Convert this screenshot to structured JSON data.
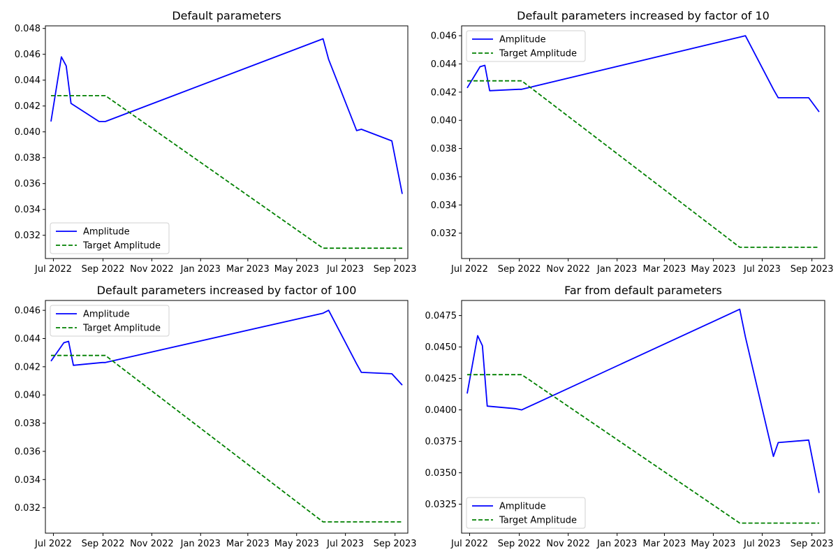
{
  "colors": {
    "amplitude": "#0000ff",
    "target": "#008000",
    "axes": "#000000",
    "background": "#ffffff"
  },
  "chart_data": [
    {
      "type": "line",
      "title": "Default parameters",
      "xlabel": "",
      "ylabel": "",
      "x_ticks": [
        "Jul 2022",
        "Sep 2022",
        "Nov 2022",
        "Jan 2023",
        "Mar 2023",
        "May 2023",
        "Jul 2023",
        "Sep 2023"
      ],
      "y_ticks": [
        "0.032",
        "0.034",
        "0.036",
        "0.038",
        "0.040",
        "0.042",
        "0.044",
        "0.046",
        "0.048"
      ],
      "ylim": [
        0.0302,
        0.0482
      ],
      "xlim": [
        "2022-06-21",
        "2023-09-17"
      ],
      "grid": false,
      "legend_position": "lower left",
      "series": [
        {
          "name": "Amplitude",
          "style": "solid",
          "points": [
            [
              "2022-06-28",
              0.0408
            ],
            [
              "2022-07-11",
              0.0458
            ],
            [
              "2022-07-17",
              0.0451
            ],
            [
              "2022-07-23",
              0.0422
            ],
            [
              "2022-08-27",
              0.0408
            ],
            [
              "2022-09-04",
              0.0408
            ],
            [
              "2023-06-03",
              0.0472
            ],
            [
              "2023-06-10",
              0.0456
            ],
            [
              "2023-07-15",
              0.0401
            ],
            [
              "2023-07-21",
              0.0402
            ],
            [
              "2023-08-28",
              0.0393
            ],
            [
              "2023-09-10",
              0.0352
            ]
          ]
        },
        {
          "name": "Target Amplitude",
          "style": "dashed",
          "points": [
            [
              "2022-06-28",
              0.0428
            ],
            [
              "2022-09-04",
              0.0428
            ],
            [
              "2023-06-03",
              0.031
            ],
            [
              "2023-09-10",
              0.031
            ]
          ]
        }
      ]
    },
    {
      "type": "line",
      "title": "Default parameters increased by factor of 10",
      "xlabel": "",
      "ylabel": "",
      "x_ticks": [
        "Jul 2022",
        "Sep 2022",
        "Nov 2022",
        "Jan 2023",
        "Mar 2023",
        "May 2023",
        "Jul 2023",
        "Sep 2023"
      ],
      "y_ticks": [
        "0.032",
        "0.034",
        "0.036",
        "0.038",
        "0.040",
        "0.042",
        "0.044",
        "0.046"
      ],
      "ylim": [
        0.0302,
        0.0467
      ],
      "xlim": [
        "2022-06-21",
        "2023-09-17"
      ],
      "grid": false,
      "legend_position": "upper left",
      "series": [
        {
          "name": "Amplitude",
          "style": "solid",
          "points": [
            [
              "2022-06-28",
              0.0423
            ],
            [
              "2022-07-14",
              0.0438
            ],
            [
              "2022-07-20",
              0.0439
            ],
            [
              "2022-07-26",
              0.0421
            ],
            [
              "2022-08-31",
              0.0422
            ],
            [
              "2022-09-04",
              0.0422
            ],
            [
              "2023-06-03",
              0.0459
            ],
            [
              "2023-06-10",
              0.046
            ],
            [
              "2023-07-15",
              0.0422
            ],
            [
              "2023-07-21",
              0.0416
            ],
            [
              "2023-08-28",
              0.0416
            ],
            [
              "2023-09-10",
              0.0406
            ]
          ]
        },
        {
          "name": "Target Amplitude",
          "style": "dashed",
          "points": [
            [
              "2022-06-28",
              0.0428
            ],
            [
              "2022-09-04",
              0.0428
            ],
            [
              "2023-06-03",
              0.031
            ],
            [
              "2023-09-10",
              0.031
            ]
          ]
        }
      ]
    },
    {
      "type": "line",
      "title": "Default parameters increased by factor of 100",
      "xlabel": "",
      "ylabel": "",
      "x_ticks": [
        "Jul 2022",
        "Sep 2022",
        "Nov 2022",
        "Jan 2023",
        "Mar 2023",
        "May 2023",
        "Jul 2023",
        "Sep 2023"
      ],
      "y_ticks": [
        "0.032",
        "0.034",
        "0.036",
        "0.038",
        "0.040",
        "0.042",
        "0.044",
        "0.046"
      ],
      "ylim": [
        0.0302,
        0.0467
      ],
      "xlim": [
        "2022-06-21",
        "2023-09-17"
      ],
      "grid": false,
      "legend_position": "upper left",
      "series": [
        {
          "name": "Amplitude",
          "style": "solid",
          "points": [
            [
              "2022-06-28",
              0.0424
            ],
            [
              "2022-07-14",
              0.0437
            ],
            [
              "2022-07-20",
              0.0438
            ],
            [
              "2022-07-26",
              0.0421
            ],
            [
              "2022-08-31",
              0.0423
            ],
            [
              "2022-09-04",
              0.0423
            ],
            [
              "2023-06-03",
              0.0458
            ],
            [
              "2023-06-10",
              0.046
            ],
            [
              "2023-07-15",
              0.0422
            ],
            [
              "2023-07-21",
              0.0416
            ],
            [
              "2023-08-28",
              0.0415
            ],
            [
              "2023-09-10",
              0.0407
            ]
          ]
        },
        {
          "name": "Target Amplitude",
          "style": "dashed",
          "points": [
            [
              "2022-06-28",
              0.0428
            ],
            [
              "2022-09-04",
              0.0428
            ],
            [
              "2023-06-03",
              0.031
            ],
            [
              "2023-09-10",
              0.031
            ]
          ]
        }
      ]
    },
    {
      "type": "line",
      "title": "Far from default parameters",
      "xlabel": "",
      "ylabel": "",
      "x_ticks": [
        "Jul 2022",
        "Sep 2022",
        "Nov 2022",
        "Jan 2023",
        "Mar 2023",
        "May 2023",
        "Jul 2023",
        "Sep 2023"
      ],
      "y_ticks": [
        "0.0325",
        "0.0350",
        "0.0375",
        "0.0400",
        "0.0425",
        "0.0450",
        "0.0475"
      ],
      "ylim": [
        0.0302,
        0.0487
      ],
      "xlim": [
        "2022-06-21",
        "2023-09-17"
      ],
      "grid": false,
      "legend_position": "lower left",
      "series": [
        {
          "name": "Amplitude",
          "style": "solid",
          "points": [
            [
              "2022-06-28",
              0.0413
            ],
            [
              "2022-07-11",
              0.0459
            ],
            [
              "2022-07-17",
              0.0451
            ],
            [
              "2022-07-23",
              0.0403
            ],
            [
              "2022-08-27",
              0.0401
            ],
            [
              "2022-09-04",
              0.04
            ],
            [
              "2023-06-03",
              0.048
            ],
            [
              "2023-06-10",
              0.0458
            ],
            [
              "2023-07-15",
              0.0363
            ],
            [
              "2023-07-21",
              0.0374
            ],
            [
              "2023-08-28",
              0.0376
            ],
            [
              "2023-09-10",
              0.0334
            ]
          ]
        },
        {
          "name": "Target Amplitude",
          "style": "dashed",
          "points": [
            [
              "2022-06-28",
              0.0428
            ],
            [
              "2022-09-04",
              0.0428
            ],
            [
              "2023-06-03",
              0.031
            ],
            [
              "2023-09-10",
              0.031
            ]
          ]
        }
      ]
    }
  ]
}
